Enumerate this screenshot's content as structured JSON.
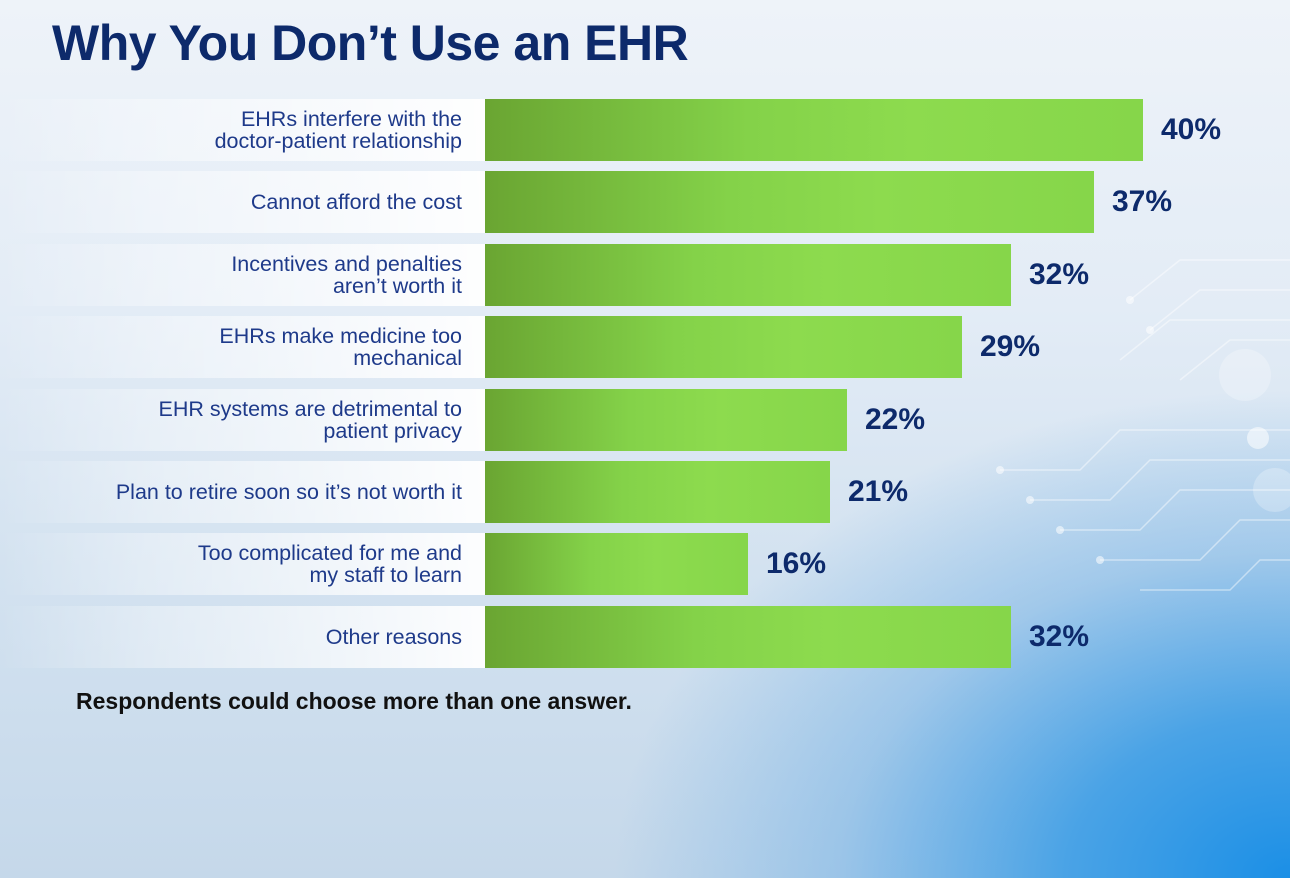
{
  "title": "Why You Don’t Use an EHR",
  "footnote": "Respondents could choose more than one answer.",
  "colors": {
    "bar_dark": "#6aa532",
    "bar_light": "#8ddb4e",
    "text_primary": "#0d2a6b",
    "label_text": "#1e3a8a"
  },
  "chart_data": {
    "type": "bar",
    "orientation": "horizontal",
    "categories": [
      "EHRs interfere with the\ndoctor-patient relationship",
      "Cannot afford the cost",
      "Incentives and penalties\naren’t worth it",
      "EHRs make medicine too\nmechanical",
      "EHR systems are detrimental to\npatient privacy",
      "Plan to retire soon so it’s not worth it",
      "Too complicated for me and\nmy staff to learn",
      "Other reasons"
    ],
    "values": [
      40,
      37,
      32,
      29,
      22,
      21,
      16,
      32
    ],
    "value_labels": [
      "40%",
      "37%",
      "32%",
      "29%",
      "22%",
      "21%",
      "16%",
      "32%"
    ],
    "title": "Why You Don’t Use an EHR",
    "xlabel": "",
    "ylabel": "",
    "grid": false,
    "legend": "none"
  }
}
